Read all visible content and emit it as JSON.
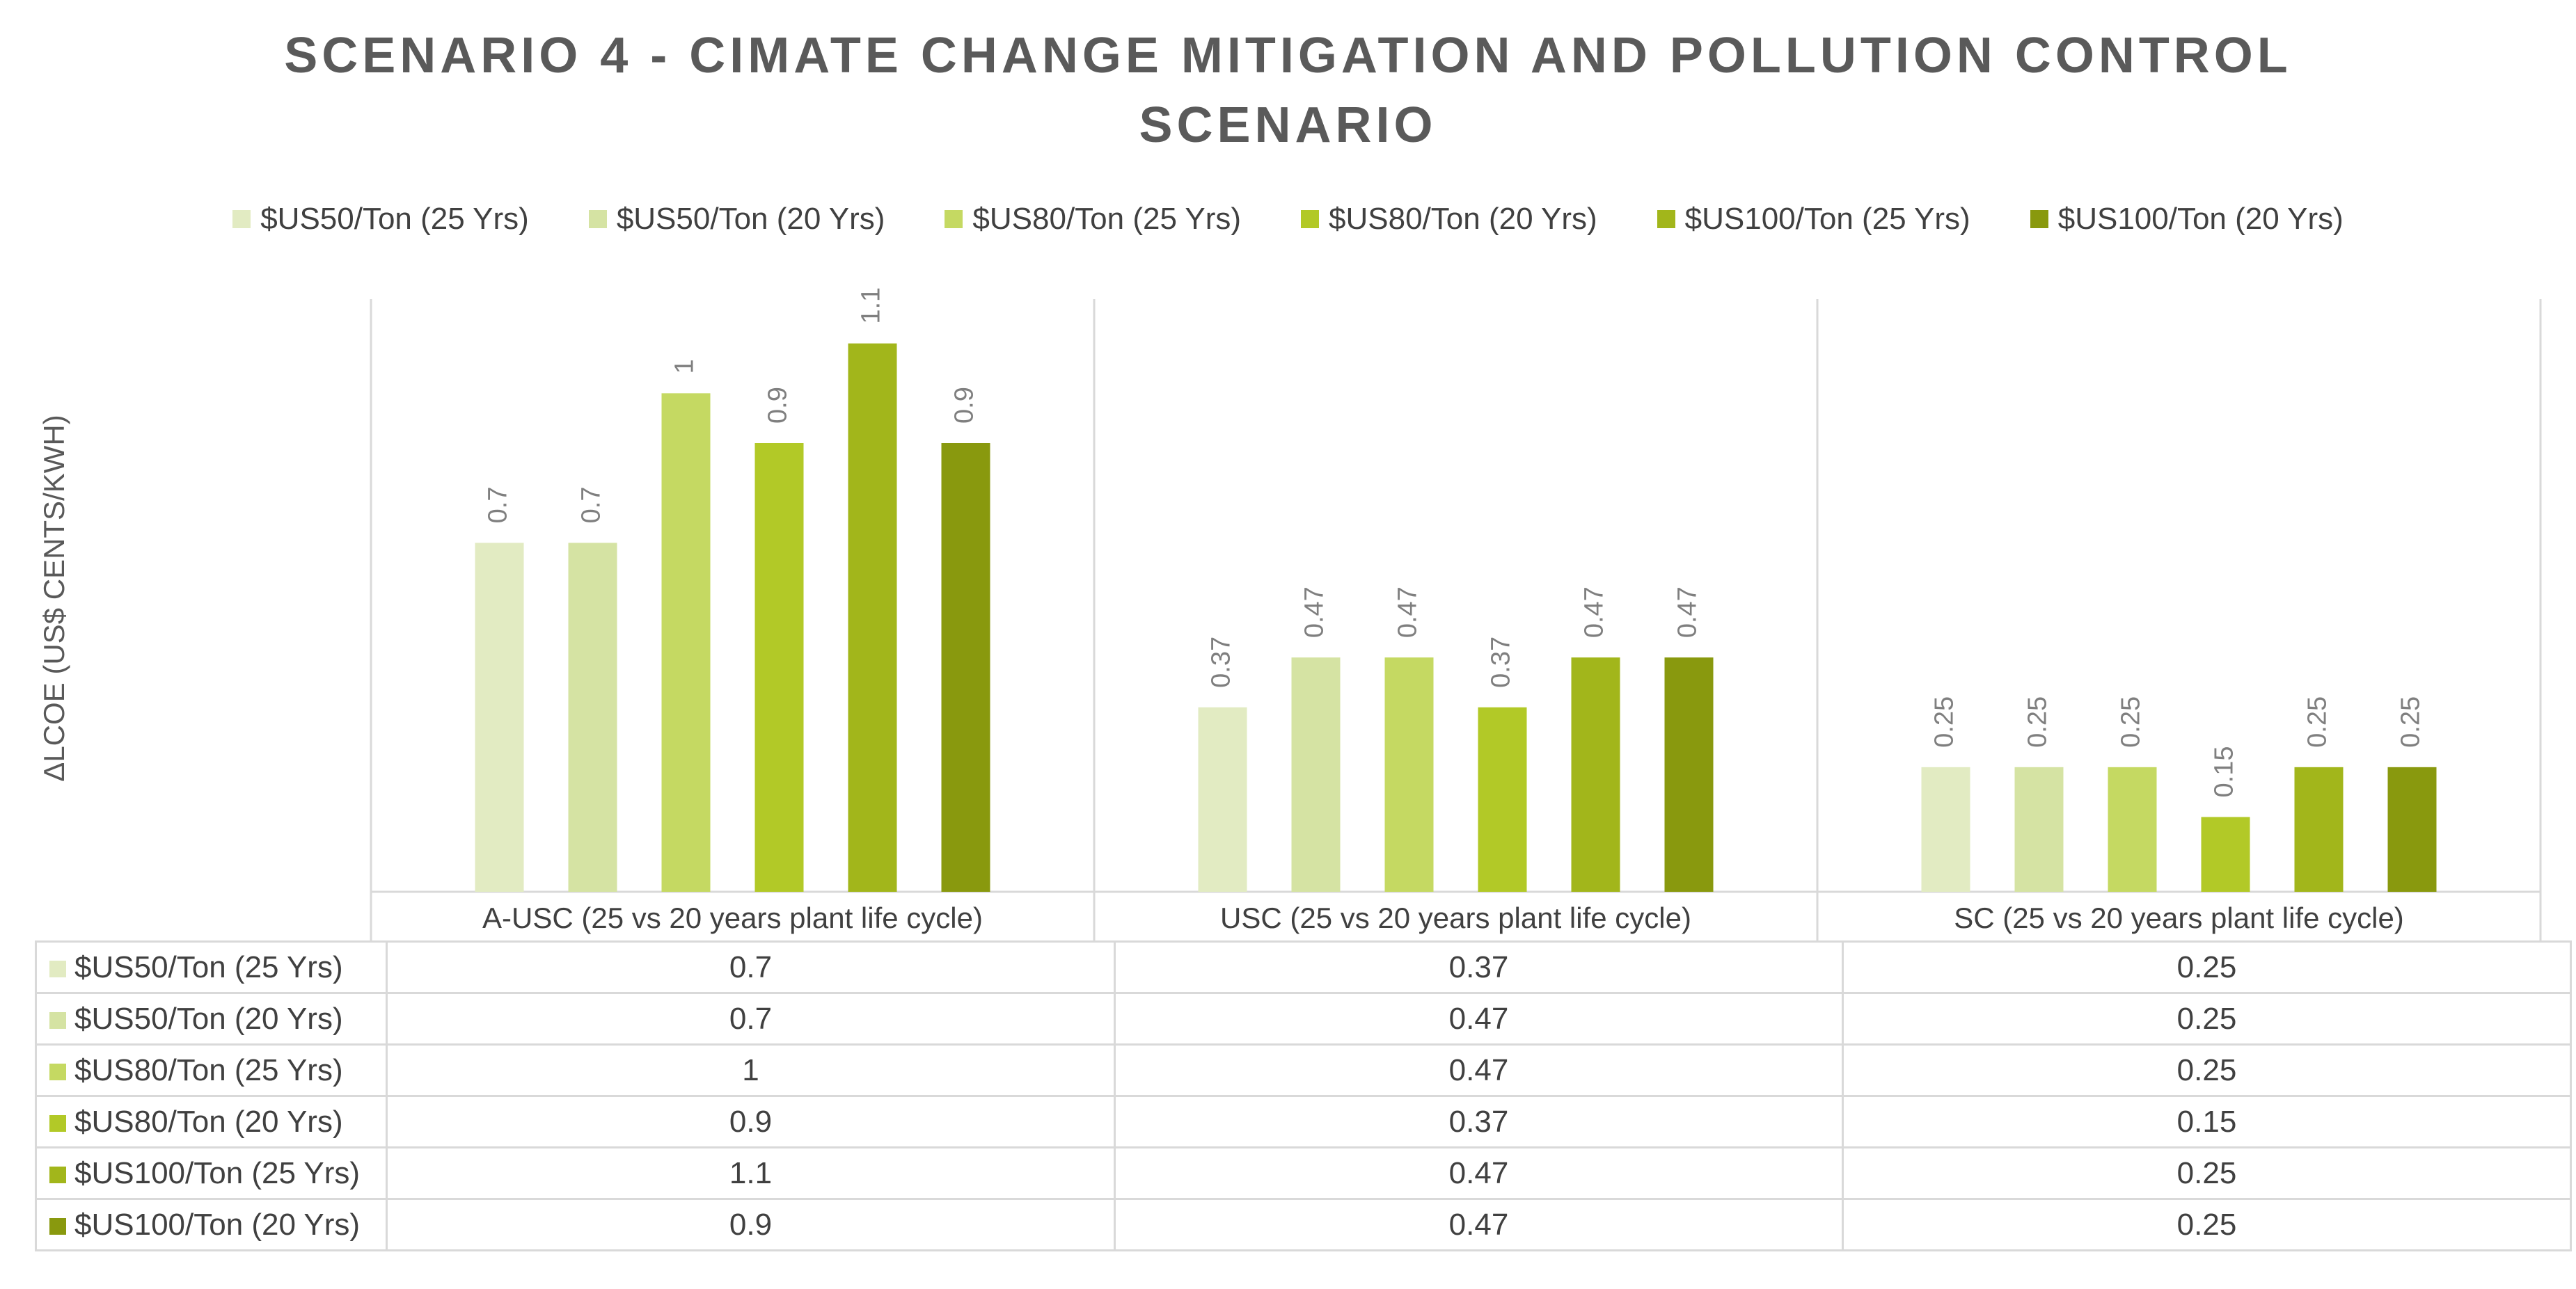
{
  "title_lines": [
    "SCENARIO 4 - CIMATE CHANGE MITIGATION AND POLLUTION CONTROL",
    "SCENARIO"
  ],
  "chart_data": {
    "type": "bar",
    "title": "SCENARIO 4 - CIMATE CHANGE MITIGATION AND POLLUTION CONTROL SCENARIO",
    "ylabel": "ΔLCOE (US$ CENTS/KWH)",
    "xlabel": "",
    "ylim": [
      0,
      1.2
    ],
    "grid": false,
    "legend_position": "top",
    "categories": [
      "A-USC (25 vs 20 years plant life cycle)",
      "USC (25 vs 20 years plant life cycle)",
      "SC (25 vs 20 years plant life cycle)"
    ],
    "series": [
      {
        "name": "$US50/Ton (25 Yrs)",
        "color": "#e2ebc2",
        "values": [
          0.7,
          0.37,
          0.25
        ],
        "labels": [
          "0.7",
          "0.37",
          "0.25"
        ]
      },
      {
        "name": "$US50/Ton (20 Yrs)",
        "color": "#d5e3a3",
        "values": [
          0.7,
          0.47,
          0.25
        ],
        "labels": [
          "0.7",
          "0.47",
          "0.25"
        ]
      },
      {
        "name": "$US80/Ton (25 Yrs)",
        "color": "#c5d962",
        "values": [
          1,
          0.47,
          0.25
        ],
        "labels": [
          "1",
          "0.47",
          "0.25"
        ]
      },
      {
        "name": "$US80/Ton (20 Yrs)",
        "color": "#b2c927",
        "values": [
          0.9,
          0.37,
          0.15
        ],
        "labels": [
          "0.9",
          "0.37",
          "0.15"
        ]
      },
      {
        "name": "$US100/Ton (25 Yrs)",
        "color": "#a2b61b",
        "values": [
          1.1,
          0.47,
          0.25
        ],
        "labels": [
          "1.1",
          "0.47",
          "0.25"
        ]
      },
      {
        "name": "$US100/Ton (20 Yrs)",
        "color": "#89990e",
        "values": [
          0.9,
          0.47,
          0.25
        ],
        "labels": [
          "0.9",
          "0.47",
          "0.25"
        ]
      }
    ]
  }
}
